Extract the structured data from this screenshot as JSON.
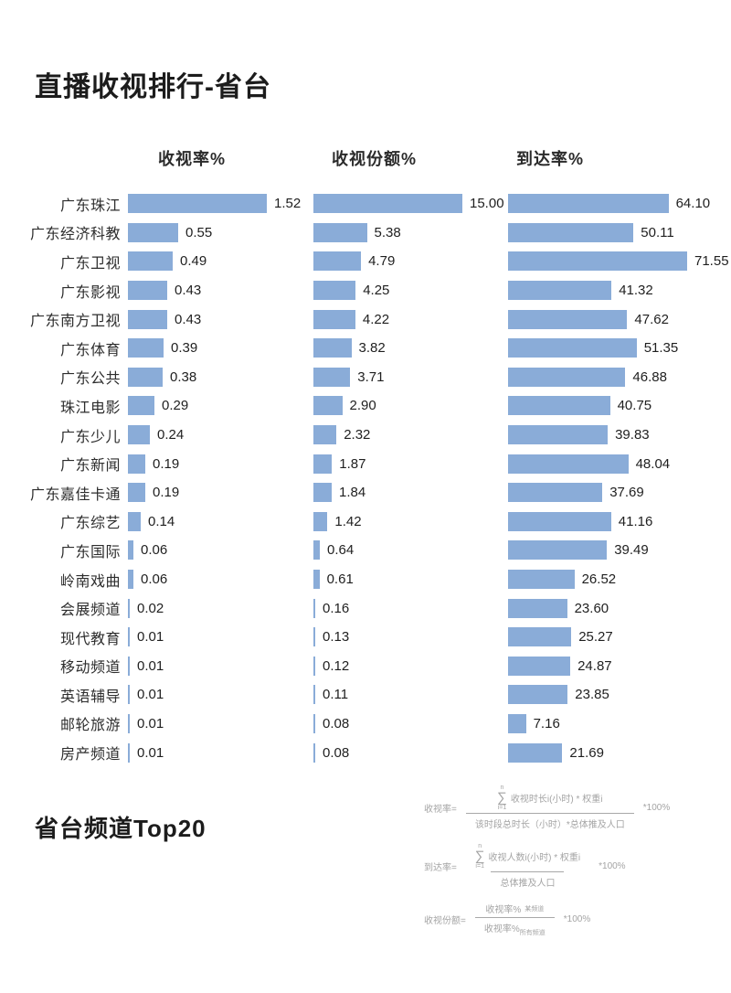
{
  "page": {
    "title": "直播收视排行-省台",
    "footer_title": "省台频道Top20"
  },
  "chart_data": {
    "type": "bar",
    "orientation": "horizontal",
    "title": "直播收视排行-省台",
    "bar_color": "#8aacd8",
    "value_label_format": "2-decimals",
    "grid": false,
    "legend": false,
    "columns": [
      {
        "label": "收视率%",
        "axis_range": [
          0,
          1.52
        ]
      },
      {
        "label": "收视份额%",
        "axis_range": [
          0,
          15.0
        ]
      },
      {
        "label": "到达率%",
        "axis_range": [
          0,
          71.55
        ]
      }
    ],
    "categories": [
      "广东珠江",
      "广东经济科教",
      "广东卫视",
      "广东影视",
      "广东南方卫视",
      "广东体育",
      "广东公共",
      "珠江电影",
      "广东少儿",
      "广东新闻",
      "广东嘉佳卡通",
      "广东综艺",
      "广东国际",
      "岭南戏曲",
      "会展频道",
      "现代教育",
      "移动频道",
      "英语辅导",
      "邮轮旅游",
      "房产频道"
    ],
    "series": [
      {
        "name": "收视率%",
        "values": [
          1.52,
          0.55,
          0.49,
          0.43,
          0.43,
          0.39,
          0.38,
          0.29,
          0.24,
          0.19,
          0.19,
          0.14,
          0.06,
          0.06,
          0.02,
          0.01,
          0.01,
          0.01,
          0.01,
          0.01
        ]
      },
      {
        "name": "收视份额%",
        "values": [
          15.0,
          5.38,
          4.79,
          4.25,
          4.22,
          3.82,
          3.71,
          2.9,
          2.32,
          1.87,
          1.84,
          1.42,
          0.64,
          0.61,
          0.16,
          0.13,
          0.12,
          0.11,
          0.08,
          0.08
        ]
      },
      {
        "name": "到达率%",
        "values": [
          64.1,
          50.11,
          71.55,
          41.32,
          47.62,
          51.35,
          46.88,
          40.75,
          39.83,
          48.04,
          37.69,
          41.16,
          39.49,
          26.52,
          23.6,
          25.27,
          24.87,
          23.85,
          7.16,
          21.69
        ]
      }
    ]
  },
  "formulas": [
    {
      "label": "收视率=",
      "sigma_top": "n",
      "sigma_bottom": "i=1",
      "numerator": "收视时长i(小时) * 权重i",
      "denominator": "该时段总时长（小时）*总体推及人口",
      "suffix": "*100%"
    },
    {
      "label": "到达率=",
      "sigma_top": "n",
      "sigma_bottom": "i=1",
      "numerator": "收视人数i(小时) * 权重i",
      "denominator": "总体推及人口",
      "suffix": "*100%"
    },
    {
      "label": "收视份额=",
      "numerator": "收视率%",
      "numerator_sub": "某频道",
      "denominator": "收视率%",
      "denominator_sub": "所有频道",
      "suffix": "*100%"
    }
  ]
}
